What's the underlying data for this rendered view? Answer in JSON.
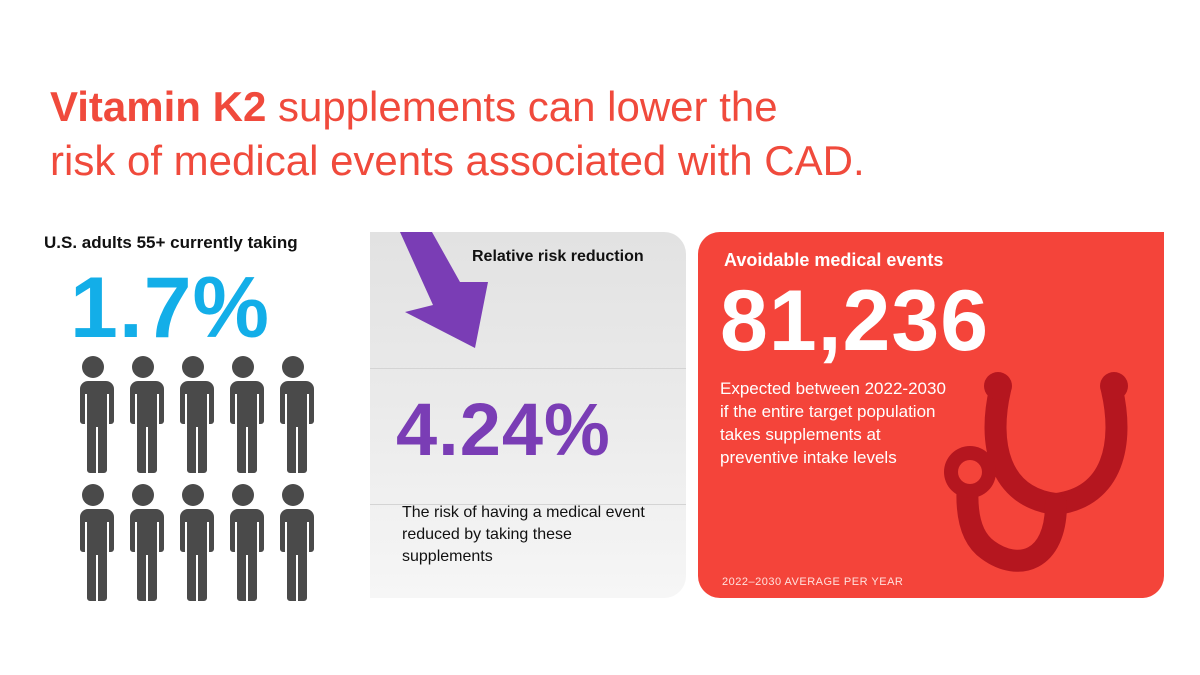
{
  "headline": {
    "emphasis": "Vitamin K2",
    "rest_line1": " supplements can lower the",
    "line2": "risk of medical events associated with CAD."
  },
  "adults": {
    "label": "U.S. adults 55+ currently taking",
    "value": "1.7%",
    "people_count": 10,
    "fraction_highlighted": 0.017,
    "colors": {
      "highlight": "#13aee8",
      "base": "#4a4a4a"
    }
  },
  "risk_reduction": {
    "label": "Relative risk reduction",
    "value": "4.24%",
    "description": "The risk of having a medical event reduced by taking these supplements",
    "colors": {
      "accent": "#7a3db5"
    }
  },
  "avoidable_events": {
    "label": "Avoidable medical events",
    "value": "81,236",
    "description": "Expected between 2022-2030 if the entire target population takes supplements at preventive intake levels",
    "footnote": "2022–2030 AVERAGE PER YEAR",
    "colors": {
      "background": "#f4443a",
      "icon": "#b5161f"
    }
  },
  "icons": [
    "arrow-down-right-icon",
    "person-icon",
    "stethoscope-icon"
  ]
}
